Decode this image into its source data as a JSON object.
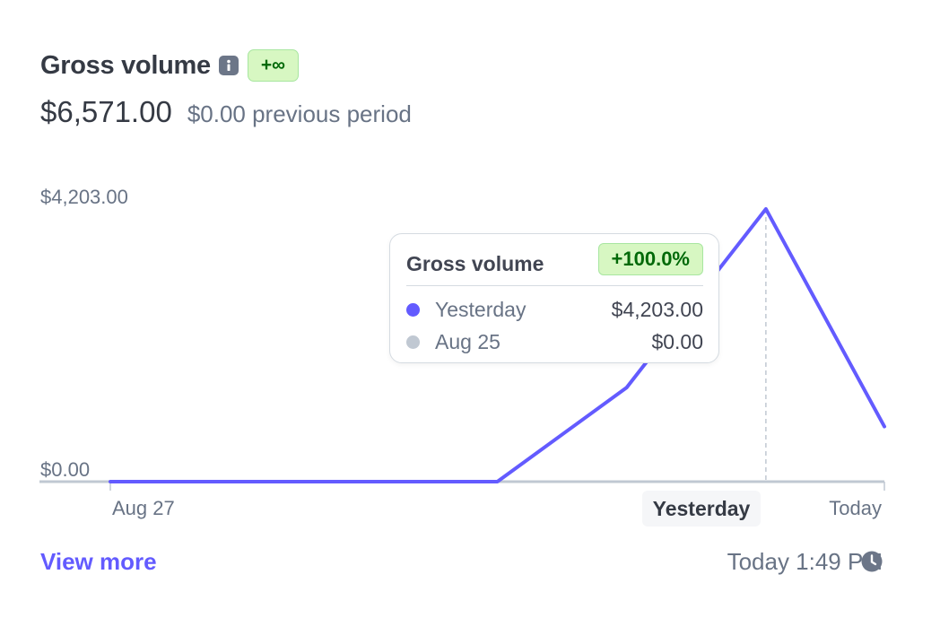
{
  "header": {
    "title": "Gross volume",
    "badge": "+∞",
    "total": "$6,571.00",
    "previous": "$0.00 previous period"
  },
  "colors": {
    "primary_series": "#635bff",
    "comparison_series": "#c0c8d2",
    "positive_badge_bg": "#d7f7c2",
    "positive_badge_text": "#006908"
  },
  "tooltip": {
    "title": "Gross volume",
    "badge": "+100.0%",
    "rows": [
      {
        "label": "Yesterday",
        "value": "$4,203.00"
      },
      {
        "label": "Aug 25",
        "value": "$0.00"
      }
    ]
  },
  "chart_data": {
    "type": "line",
    "y_tick_labels": [
      "$4,203.00",
      "$0.00"
    ],
    "ylim": [
      0,
      4203
    ],
    "x_tick_labels": [
      "Aug 27",
      "Yesterday",
      "Today"
    ],
    "highlighted_x": "Yesterday",
    "series": [
      {
        "color": "#635bff",
        "points": [
          {
            "t": 0,
            "y": 0
          },
          {
            "t": 0.5,
            "y": 0
          },
          {
            "t": 0.667,
            "y": 1450
          },
          {
            "t": 0.833,
            "y": 4203
          },
          {
            "t": 1,
            "y": 850
          }
        ]
      }
    ],
    "x_tick_positions": [
      0,
      0.833,
      1
    ],
    "grid": false
  },
  "footer": {
    "view_more": "View more",
    "updated": "Today 1:49 PM"
  },
  "icons": [
    "info-icon",
    "clock-icon"
  ]
}
